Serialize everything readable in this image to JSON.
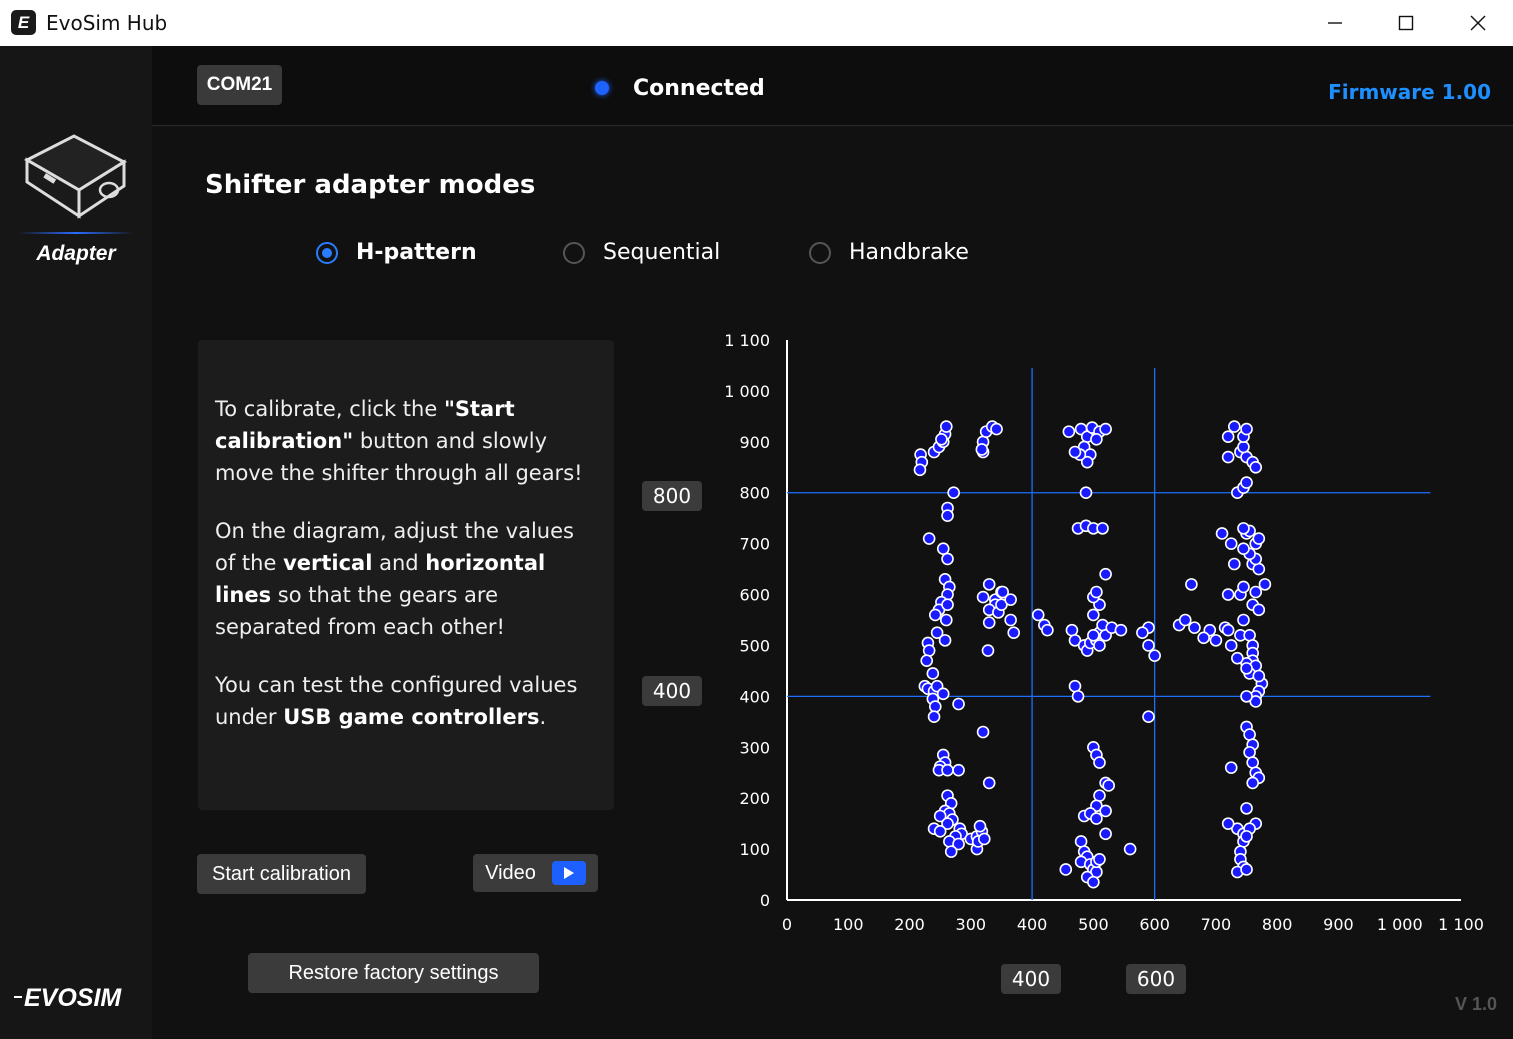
{
  "window": {
    "title": "EvoSim Hub",
    "icon_letter": "E"
  },
  "sidebar": {
    "tab_label": "Adapter",
    "logo_text": "EVOSIM"
  },
  "topbar": {
    "port": "COM21",
    "status": "Connected",
    "firmware": "Firmware 1.00"
  },
  "main": {
    "title": "Shifter adapter modes",
    "modes": [
      {
        "label": "H-pattern",
        "selected": true
      },
      {
        "label": "Sequential",
        "selected": false
      },
      {
        "label": "Handbrake",
        "selected": false
      }
    ],
    "info": {
      "p1_a": "To calibrate, click the ",
      "p1_b": "\"Start calibration\"",
      "p1_c": " button and slowly move the shifter through all gears!",
      "p2_a": "On the diagram, adjust the values of the ",
      "p2_b": "vertical",
      "p2_c": " and ",
      "p2_d": "horizontal lines",
      "p2_e": " so that the gears are separated from each other!",
      "p3_a": "You can test the configured values under ",
      "p3_b": "USB game controllers",
      "p3_c": "."
    },
    "start_button": "Start calibration",
    "video_button": "Video",
    "restore_button": "Restore factory settings",
    "version": "V 1.0"
  },
  "thresholds": {
    "h_upper": "800",
    "h_lower": "400",
    "v_left": "400",
    "v_right": "600"
  },
  "colors": {
    "accent": "#1e63ff",
    "point_fill": "#1a1aff",
    "line": "#1e6fff"
  },
  "chart_data": {
    "type": "scatter",
    "xlim": [
      0,
      1100
    ],
    "ylim": [
      0,
      1100
    ],
    "x_ticks": [
      "0",
      "100",
      "200",
      "300",
      "400",
      "500",
      "600",
      "700",
      "800",
      "900",
      "1 000",
      "1 100"
    ],
    "y_ticks": [
      "0",
      "100",
      "200",
      "300",
      "400",
      "500",
      "600",
      "700",
      "800",
      "900",
      "1 000",
      "1 100"
    ],
    "vertical_lines": [
      400,
      600
    ],
    "horizontal_lines": [
      400,
      800
    ],
    "points": [
      [
        218,
        875
      ],
      [
        220,
        860
      ],
      [
        217,
        845
      ],
      [
        240,
        880
      ],
      [
        248,
        890
      ],
      [
        255,
        900
      ],
      [
        258,
        915
      ],
      [
        260,
        930
      ],
      [
        252,
        905
      ],
      [
        272,
        800
      ],
      [
        262,
        770
      ],
      [
        262,
        755
      ],
      [
        232,
        710
      ],
      [
        255,
        690
      ],
      [
        262,
        670
      ],
      [
        258,
        630
      ],
      [
        265,
        615
      ],
      [
        262,
        600
      ],
      [
        252,
        585
      ],
      [
        248,
        570
      ],
      [
        262,
        580
      ],
      [
        242,
        560
      ],
      [
        260,
        550
      ],
      [
        245,
        525
      ],
      [
        258,
        510
      ],
      [
        230,
        505
      ],
      [
        232,
        490
      ],
      [
        228,
        470
      ],
      [
        238,
        445
      ],
      [
        225,
        420
      ],
      [
        230,
        415
      ],
      [
        240,
        410
      ],
      [
        245,
        420
      ],
      [
        255,
        405
      ],
      [
        238,
        395
      ],
      [
        242,
        380
      ],
      [
        240,
        360
      ],
      [
        280,
        385
      ],
      [
        255,
        285
      ],
      [
        258,
        270
      ],
      [
        250,
        262
      ],
      [
        248,
        255
      ],
      [
        262,
        255
      ],
      [
        280,
        255
      ],
      [
        262,
        205
      ],
      [
        268,
        190
      ],
      [
        258,
        175
      ],
      [
        265,
        170
      ],
      [
        250,
        165
      ],
      [
        270,
        158
      ],
      [
        262,
        150
      ],
      [
        282,
        140
      ],
      [
        285,
        130
      ],
      [
        240,
        140
      ],
      [
        250,
        135
      ],
      [
        275,
        125
      ],
      [
        265,
        115
      ],
      [
        280,
        110
      ],
      [
        300,
        120
      ],
      [
        310,
        125
      ],
      [
        268,
        95
      ],
      [
        310,
        100
      ],
      [
        312,
        115
      ],
      [
        318,
        135
      ],
      [
        322,
        120
      ],
      [
        315,
        145
      ],
      [
        320,
        330
      ],
      [
        330,
        230
      ],
      [
        340,
        590
      ],
      [
        340,
        580
      ],
      [
        320,
        595
      ],
      [
        330,
        620
      ],
      [
        350,
        605
      ],
      [
        352,
        605
      ],
      [
        330,
        570
      ],
      [
        345,
        565
      ],
      [
        350,
        580
      ],
      [
        365,
        590
      ],
      [
        330,
        545
      ],
      [
        365,
        550
      ],
      [
        370,
        525
      ],
      [
        328,
        490
      ],
      [
        320,
        900
      ],
      [
        325,
        920
      ],
      [
        335,
        930
      ],
      [
        342,
        925
      ],
      [
        320,
        880
      ],
      [
        318,
        885
      ],
      [
        410,
        560
      ],
      [
        420,
        540
      ],
      [
        425,
        530
      ],
      [
        465,
        530
      ],
      [
        470,
        510
      ],
      [
        485,
        500
      ],
      [
        490,
        490
      ],
      [
        495,
        505
      ],
      [
        505,
        510
      ],
      [
        510,
        525
      ],
      [
        515,
        540
      ],
      [
        500,
        520
      ],
      [
        510,
        500
      ],
      [
        520,
        520
      ],
      [
        530,
        535
      ],
      [
        545,
        530
      ],
      [
        500,
        560
      ],
      [
        510,
        580
      ],
      [
        500,
        595
      ],
      [
        505,
        605
      ],
      [
        520,
        640
      ],
      [
        460,
        920
      ],
      [
        480,
        925
      ],
      [
        490,
        910
      ],
      [
        498,
        928
      ],
      [
        510,
        920
      ],
      [
        520,
        925
      ],
      [
        505,
        905
      ],
      [
        485,
        890
      ],
      [
        495,
        875
      ],
      [
        490,
        860
      ],
      [
        478,
        875
      ],
      [
        470,
        880
      ],
      [
        488,
        800
      ],
      [
        475,
        730
      ],
      [
        488,
        735
      ],
      [
        500,
        730
      ],
      [
        515,
        730
      ],
      [
        470,
        420
      ],
      [
        475,
        400
      ],
      [
        500,
        300
      ],
      [
        505,
        285
      ],
      [
        510,
        270
      ],
      [
        520,
        230
      ],
      [
        525,
        225
      ],
      [
        510,
        205
      ],
      [
        505,
        185
      ],
      [
        520,
        175
      ],
      [
        485,
        165
      ],
      [
        495,
        170
      ],
      [
        505,
        160
      ],
      [
        520,
        130
      ],
      [
        480,
        115
      ],
      [
        485,
        95
      ],
      [
        490,
        85
      ],
      [
        480,
        75
      ],
      [
        495,
        70
      ],
      [
        500,
        60
      ],
      [
        505,
        55
      ],
      [
        490,
        45
      ],
      [
        500,
        35
      ],
      [
        505,
        75
      ],
      [
        510,
        80
      ],
      [
        455,
        60
      ],
      [
        560,
        100
      ],
      [
        590,
        535
      ],
      [
        580,
        525
      ],
      [
        590,
        500
      ],
      [
        600,
        480
      ],
      [
        590,
        360
      ],
      [
        640,
        540
      ],
      [
        650,
        550
      ],
      [
        665,
        535
      ],
      [
        690,
        530
      ],
      [
        715,
        535
      ],
      [
        720,
        530
      ],
      [
        700,
        510
      ],
      [
        680,
        515
      ],
      [
        725,
        500
      ],
      [
        660,
        620
      ],
      [
        720,
        600
      ],
      [
        740,
        520
      ],
      [
        745,
        550
      ],
      [
        760,
        580
      ],
      [
        770,
        570
      ],
      [
        740,
        600
      ],
      [
        745,
        615
      ],
      [
        765,
        605
      ],
      [
        780,
        620
      ],
      [
        760,
        660
      ],
      [
        770,
        650
      ],
      [
        765,
        670
      ],
      [
        755,
        680
      ],
      [
        745,
        690
      ],
      [
        765,
        700
      ],
      [
        770,
        710
      ],
      [
        750,
        720
      ],
      [
        755,
        725
      ],
      [
        745,
        730
      ],
      [
        725,
        700
      ],
      [
        730,
        660
      ],
      [
        710,
        720
      ],
      [
        735,
        800
      ],
      [
        745,
        810
      ],
      [
        750,
        820
      ],
      [
        740,
        880
      ],
      [
        750,
        870
      ],
      [
        760,
        860
      ],
      [
        765,
        850
      ],
      [
        745,
        890
      ],
      [
        720,
        910
      ],
      [
        745,
        910
      ],
      [
        750,
        925
      ],
      [
        730,
        930
      ],
      [
        720,
        870
      ],
      [
        775,
        425
      ],
      [
        770,
        410
      ],
      [
        765,
        400
      ],
      [
        765,
        390
      ],
      [
        750,
        340
      ],
      [
        755,
        325
      ],
      [
        760,
        305
      ],
      [
        755,
        290
      ],
      [
        760,
        270
      ],
      [
        765,
        250
      ],
      [
        770,
        240
      ],
      [
        760,
        230
      ],
      [
        725,
        260
      ],
      [
        750,
        180
      ],
      [
        735,
        140
      ],
      [
        745,
        130
      ],
      [
        745,
        115
      ],
      [
        720,
        150
      ],
      [
        765,
        150
      ],
      [
        755,
        140
      ],
      [
        750,
        125
      ],
      [
        740,
        95
      ],
      [
        740,
        80
      ],
      [
        745,
        65
      ],
      [
        735,
        55
      ],
      [
        750,
        60
      ],
      [
        755,
        520
      ],
      [
        760,
        500
      ],
      [
        760,
        485
      ],
      [
        760,
        470
      ],
      [
        750,
        465
      ],
      [
        765,
        460
      ],
      [
        755,
        445
      ],
      [
        735,
        475
      ],
      [
        750,
        455
      ],
      [
        770,
        440
      ],
      [
        750,
        400
      ]
    ]
  }
}
